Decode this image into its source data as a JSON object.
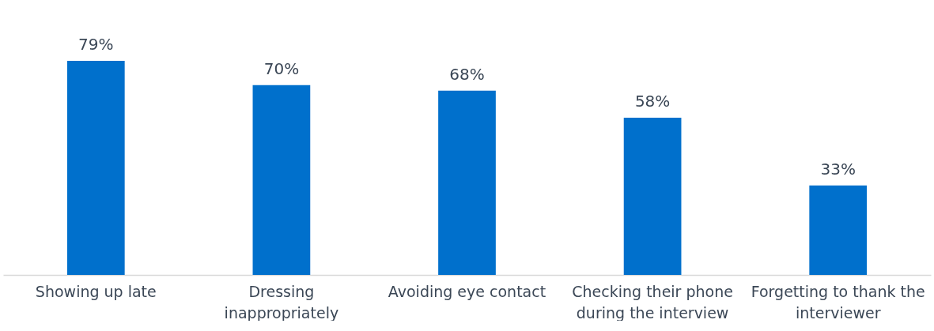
{
  "chart_data": {
    "type": "bar",
    "categories": [
      "Showing up late",
      "Dressing inappropriately",
      "Avoiding eye contact",
      "Checking their phone during the interview",
      "Forgetting to thank the interviewer"
    ],
    "values": [
      79,
      70,
      68,
      58,
      33
    ],
    "value_labels": [
      "79%",
      "70%",
      "68%",
      "58%",
      "33%"
    ],
    "color": "#0070cc"
  }
}
